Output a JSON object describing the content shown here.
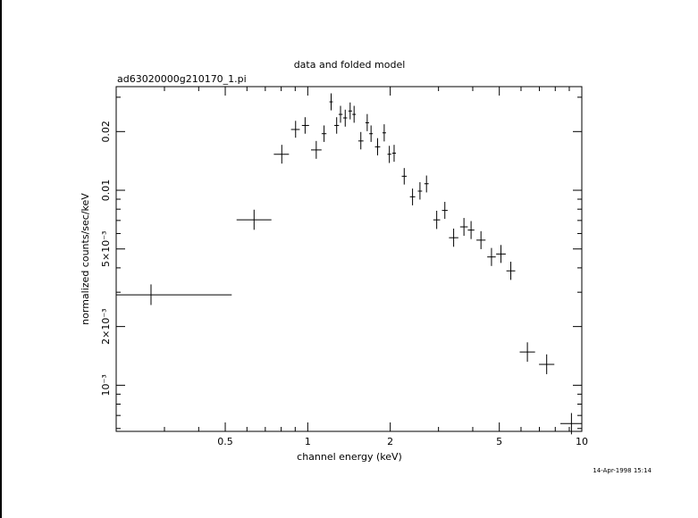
{
  "footer": {
    "timestamp": "14-Apr-1998 15:14"
  },
  "chart_data": {
    "type": "scatter",
    "title": "data and folded model",
    "subtitle": "ad63020000g210170_1.pi",
    "xlabel": "channel energy (keV)",
    "ylabel": "normalized counts/sec/keV",
    "xscale": "log",
    "yscale": "log",
    "xlim": [
      0.2,
      10
    ],
    "ylim": [
      0.00058,
      0.034
    ],
    "grid": false,
    "legend": "none",
    "x_tick_labels": [
      {
        "value": 0.5,
        "label": "0.5"
      },
      {
        "value": 1,
        "label": "1"
      },
      {
        "value": 2,
        "label": "2"
      },
      {
        "value": 5,
        "label": "5"
      },
      {
        "value": 10,
        "label": "10"
      }
    ],
    "y_tick_labels": [
      {
        "value": 0.001,
        "label": "10⁻³"
      },
      {
        "value": 0.002,
        "label": "2×10⁻³"
      },
      {
        "value": 0.005,
        "label": "5×10⁻³"
      },
      {
        "value": 0.01,
        "label": "0.01"
      },
      {
        "value": 0.02,
        "label": "0.02"
      }
    ],
    "points": [
      {
        "x": 0.268,
        "y": 0.00291,
        "xlo": 0.2,
        "xhi": 0.528,
        "ylo": 0.00258,
        "yhi": 0.00329
      },
      {
        "x": 0.637,
        "y": 0.00705,
        "xlo": 0.55,
        "xhi": 0.737,
        "ylo": 0.00627,
        "yhi": 0.00795
      },
      {
        "x": 0.804,
        "y": 0.0153,
        "xlo": 0.752,
        "xhi": 0.854,
        "ylo": 0.0137,
        "yhi": 0.0171
      },
      {
        "x": 0.903,
        "y": 0.0205,
        "xlo": 0.869,
        "xhi": 0.935,
        "ylo": 0.0186,
        "yhi": 0.0227
      },
      {
        "x": 0.978,
        "y": 0.0215,
        "xlo": 0.952,
        "xhi": 1.011,
        "ylo": 0.0195,
        "yhi": 0.0237
      },
      {
        "x": 1.074,
        "y": 0.0161,
        "xlo": 1.028,
        "xhi": 1.123,
        "ylo": 0.0145,
        "yhi": 0.0179
      },
      {
        "x": 1.147,
        "y": 0.0195,
        "xlo": 1.124,
        "xhi": 1.17,
        "ylo": 0.0177,
        "yhi": 0.0215
      },
      {
        "x": 1.217,
        "y": 0.0284,
        "xlo": 1.199,
        "xhi": 1.235,
        "ylo": 0.0257,
        "yhi": 0.0314
      },
      {
        "x": 1.275,
        "y": 0.0215,
        "xlo": 1.25,
        "xhi": 1.3,
        "ylo": 0.0195,
        "yhi": 0.0237
      },
      {
        "x": 1.317,
        "y": 0.0245,
        "xlo": 1.296,
        "xhi": 1.34,
        "ylo": 0.0222,
        "yhi": 0.0271
      },
      {
        "x": 1.37,
        "y": 0.0235,
        "xlo": 1.347,
        "xhi": 1.392,
        "ylo": 0.0212,
        "yhi": 0.0259
      },
      {
        "x": 1.428,
        "y": 0.0255,
        "xlo": 1.406,
        "xhi": 1.451,
        "ylo": 0.0231,
        "yhi": 0.0282
      },
      {
        "x": 1.476,
        "y": 0.0245,
        "xlo": 1.454,
        "xhi": 1.498,
        "ylo": 0.0222,
        "yhi": 0.0271
      },
      {
        "x": 1.562,
        "y": 0.0179,
        "xlo": 1.529,
        "xhi": 1.597,
        "ylo": 0.0162,
        "yhi": 0.0199
      },
      {
        "x": 1.648,
        "y": 0.0222,
        "xlo": 1.623,
        "xhi": 1.674,
        "ylo": 0.0201,
        "yhi": 0.0246
      },
      {
        "x": 1.702,
        "y": 0.0195,
        "xlo": 1.676,
        "xhi": 1.728,
        "ylo": 0.0177,
        "yhi": 0.0215
      },
      {
        "x": 1.798,
        "y": 0.0167,
        "xlo": 1.759,
        "xhi": 1.838,
        "ylo": 0.0151,
        "yhi": 0.0185
      },
      {
        "x": 1.901,
        "y": 0.0197,
        "xlo": 1.873,
        "xhi": 1.93,
        "ylo": 0.0178,
        "yhi": 0.0218
      },
      {
        "x": 1.985,
        "y": 0.0153,
        "xlo": 1.953,
        "xhi": 2.017,
        "ylo": 0.0138,
        "yhi": 0.0169
      },
      {
        "x": 2.066,
        "y": 0.0155,
        "xlo": 2.033,
        "xhi": 2.098,
        "ylo": 0.014,
        "yhi": 0.0171
      },
      {
        "x": 2.249,
        "y": 0.0118,
        "xlo": 2.203,
        "xhi": 2.297,
        "ylo": 0.0107,
        "yhi": 0.013
      },
      {
        "x": 2.412,
        "y": 0.00926,
        "xlo": 2.359,
        "xhi": 2.467,
        "ylo": 0.00837,
        "yhi": 0.0102
      },
      {
        "x": 2.567,
        "y": 0.0099,
        "xlo": 2.521,
        "xhi": 2.614,
        "ylo": 0.00896,
        "yhi": 0.011
      },
      {
        "x": 2.712,
        "y": 0.0108,
        "xlo": 2.663,
        "xhi": 2.762,
        "ylo": 0.00975,
        "yhi": 0.0119
      },
      {
        "x": 2.955,
        "y": 0.00705,
        "xlo": 2.871,
        "xhi": 3.041,
        "ylo": 0.00633,
        "yhi": 0.00785
      },
      {
        "x": 3.164,
        "y": 0.00788,
        "xlo": 3.089,
        "xhi": 3.24,
        "ylo": 0.00713,
        "yhi": 0.00872
      },
      {
        "x": 3.407,
        "y": 0.00571,
        "xlo": 3.276,
        "xhi": 3.544,
        "ylo": 0.00513,
        "yhi": 0.00636
      },
      {
        "x": 3.715,
        "y": 0.00649,
        "xlo": 3.597,
        "xhi": 3.836,
        "ylo": 0.00584,
        "yhi": 0.00721
      },
      {
        "x": 3.944,
        "y": 0.00625,
        "xlo": 3.836,
        "xhi": 4.055,
        "ylo": 0.00562,
        "yhi": 0.00695
      },
      {
        "x": 4.286,
        "y": 0.00555,
        "xlo": 4.125,
        "xhi": 4.453,
        "ylo": 0.00499,
        "yhi": 0.00617
      },
      {
        "x": 4.682,
        "y": 0.00455,
        "xlo": 4.518,
        "xhi": 4.852,
        "ylo": 0.00409,
        "yhi": 0.00506
      },
      {
        "x": 5.07,
        "y": 0.00471,
        "xlo": 4.87,
        "xhi": 5.278,
        "ylo": 0.00424,
        "yhi": 0.00524
      },
      {
        "x": 5.507,
        "y": 0.00386,
        "xlo": 5.307,
        "xhi": 5.715,
        "ylo": 0.00347,
        "yhi": 0.0043
      },
      {
        "x": 6.33,
        "y": 0.00148,
        "xlo": 5.935,
        "xhi": 6.751,
        "ylo": 0.00132,
        "yhi": 0.00166
      },
      {
        "x": 7.444,
        "y": 0.00128,
        "xlo": 6.98,
        "xhi": 7.939,
        "ylo": 0.00114,
        "yhi": 0.00144
      },
      {
        "x": 9.165,
        "y": 0.000636,
        "xlo": 8.352,
        "xhi": 10.0,
        "ylo": 0.00056,
        "yhi": 0.00072
      }
    ]
  }
}
